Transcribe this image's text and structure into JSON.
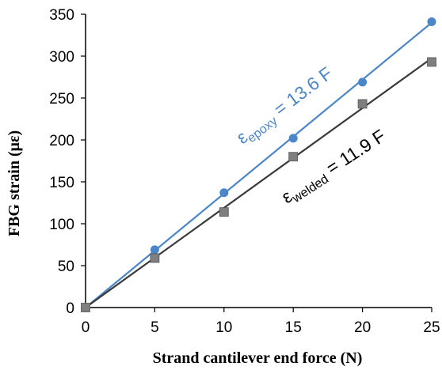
{
  "chart_data": {
    "type": "scatter",
    "title": "",
    "xlabel": "Strand cantilever end force (N)",
    "ylabel": "FBG strain (με)",
    "xlim": [
      0,
      25
    ],
    "ylim": [
      0,
      350
    ],
    "xticks": [
      "0",
      "5",
      "10",
      "15",
      "20",
      "25"
    ],
    "yticks": [
      "0",
      "50",
      "100",
      "150",
      "200",
      "250",
      "300",
      "350"
    ],
    "grid": false,
    "series": [
      {
        "key": "epoxy",
        "color": "#4a86c8",
        "marker": "circle",
        "x": [
          0,
          5,
          10,
          15,
          20,
          25
        ],
        "y": [
          0,
          69,
          137,
          202,
          269,
          341
        ],
        "fit_slope": 13.6
      },
      {
        "key": "welded",
        "color": "#3a3a3a",
        "marker_color": "#7f7f7f",
        "marker": "square",
        "x": [
          0,
          5,
          10,
          15,
          20,
          25
        ],
        "y": [
          0,
          59,
          114,
          180,
          243,
          293
        ],
        "fit_slope": 11.9
      }
    ],
    "annotations": {
      "epoxy": {
        "symbol": "ε",
        "sub": "epoxy",
        "eq": " = 13.6 F",
        "color": "#4a86c8"
      },
      "welded": {
        "symbol": "ε",
        "sub": "welded",
        "eq": " = 11.9 F",
        "color": "#000000"
      }
    }
  }
}
